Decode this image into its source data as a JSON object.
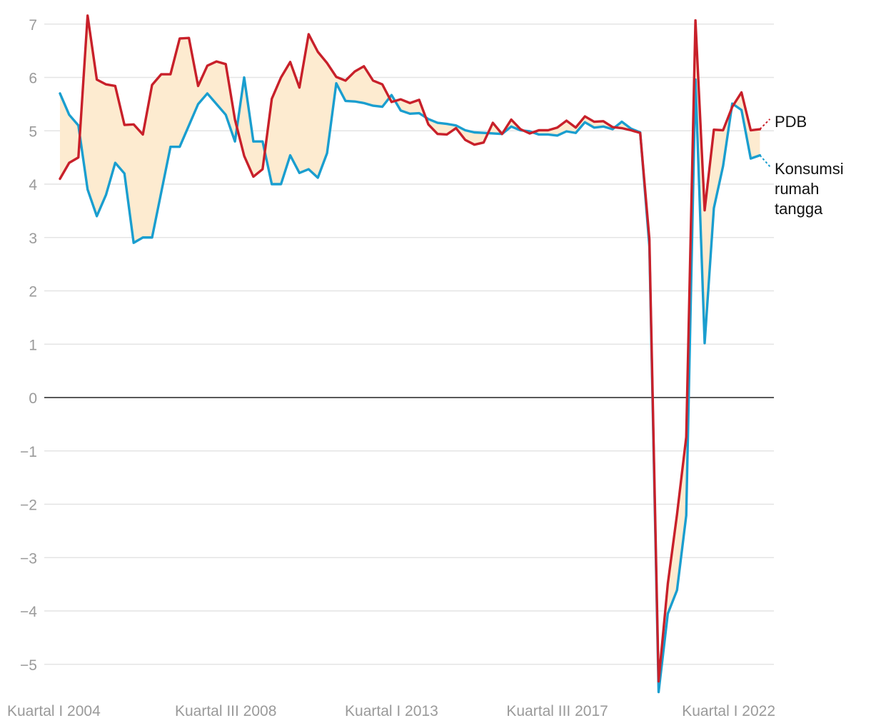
{
  "chart_data": {
    "type": "line",
    "title": "",
    "xlabel": "",
    "ylabel": "",
    "ylim": [
      -5.5,
      7.3
    ],
    "y_ticks": [
      "7",
      "6",
      "5",
      "4",
      "3",
      "2",
      "1",
      "0",
      "−1",
      "−2",
      "−3",
      "−4",
      "−5"
    ],
    "y_tick_values": [
      7,
      6,
      5,
      4,
      3,
      2,
      1,
      0,
      -1,
      -2,
      -3,
      -4,
      -5
    ],
    "x_tick_labels": [
      "Kuartal I 2004",
      "Kuartal III 2008",
      "Kuartal I 2013",
      "Kuartal III 2017",
      "Kuartal I 2022"
    ],
    "x_tick_indices": [
      0,
      18,
      36,
      54,
      72
    ],
    "grid": true,
    "fill_between": "#fdebd0",
    "series": [
      {
        "name": "PDB",
        "color": "#c8202a",
        "values": [
          4.1,
          4.4,
          4.5,
          7.16,
          5.96,
          5.87,
          5.84,
          5.11,
          5.12,
          4.93,
          5.86,
          6.06,
          6.06,
          6.73,
          6.74,
          5.84,
          6.22,
          6.3,
          6.25,
          5.21,
          4.53,
          4.14,
          4.28,
          5.6,
          6.0,
          6.29,
          5.81,
          6.81,
          6.48,
          6.27,
          6.01,
          5.94,
          6.11,
          6.21,
          5.94,
          5.87,
          5.54,
          5.59,
          5.52,
          5.58,
          5.12,
          4.94,
          4.93,
          5.05,
          4.83,
          4.74,
          4.78,
          5.15,
          4.94,
          5.21,
          5.03,
          4.95,
          5.01,
          5.01,
          5.06,
          5.19,
          5.06,
          5.27,
          5.17,
          5.18,
          5.07,
          5.05,
          5.01,
          4.96,
          2.97,
          -5.32,
          -3.49,
          -2.19,
          -0.74,
          7.07,
          3.51,
          5.02,
          5.01,
          5.45,
          5.72,
          5.01,
          5.03
        ],
        "end_value": 5.22
      },
      {
        "name": "Konsumsi rumah tangga",
        "color": "#1a9ecf",
        "values": [
          5.7,
          5.3,
          5.1,
          3.9,
          3.4,
          3.8,
          4.4,
          4.2,
          2.9,
          3.0,
          3.0,
          3.85,
          4.7,
          4.7,
          5.1,
          5.5,
          5.7,
          5.5,
          5.3,
          4.8,
          6.0,
          4.8,
          4.8,
          4.0,
          4.0,
          4.54,
          4.21,
          4.28,
          4.12,
          4.58,
          5.89,
          5.56,
          5.55,
          5.52,
          5.47,
          5.45,
          5.67,
          5.38,
          5.32,
          5.33,
          5.22,
          5.15,
          5.13,
          5.1,
          5.01,
          4.97,
          4.96,
          4.95,
          4.94,
          5.08,
          5.01,
          4.99,
          4.93,
          4.93,
          4.91,
          4.99,
          4.96,
          5.16,
          5.06,
          5.08,
          5.03,
          5.17,
          5.04,
          4.97,
          2.83,
          -5.52,
          -4.05,
          -3.61,
          -2.21,
          5.96,
          1.02,
          3.55,
          4.34,
          5.51,
          5.39,
          4.48,
          4.54
        ],
        "end_value": 4.33
      }
    ]
  }
}
